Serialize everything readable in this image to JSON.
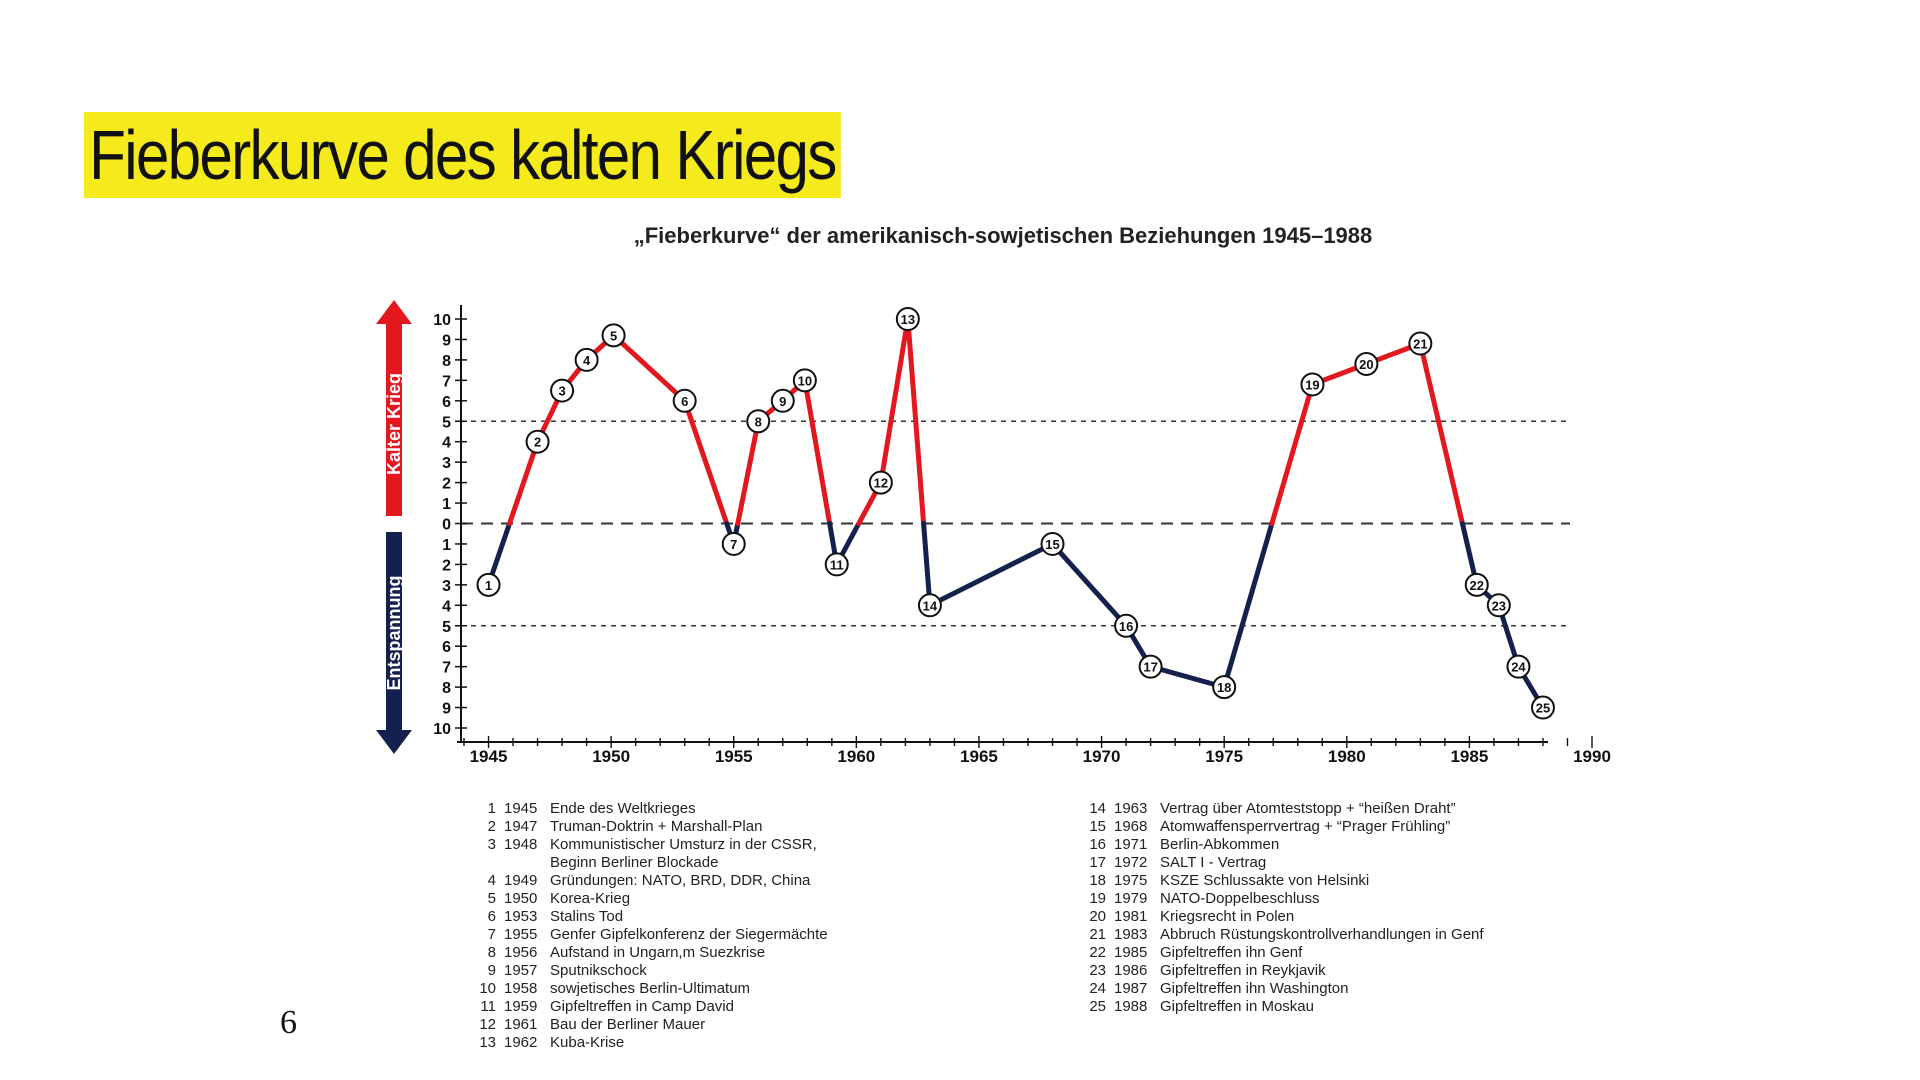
{
  "slide": {
    "title": "Fieberkurve des kalten Kriegs",
    "page_number": "6"
  },
  "colors": {
    "highlight": "#f5eb1c",
    "cold_war_red": "#e3181f",
    "detente_navy": "#14214e"
  },
  "chart_data": {
    "type": "line",
    "title": "„Fieberkurve“ der amerikanisch-sowjetischen Beziehungen 1945–1988",
    "axis_band_labels": {
      "upper": "Kalter Krieg",
      "lower": "Entspannung"
    },
    "x_ticks": [
      1945,
      1950,
      1955,
      1960,
      1965,
      1970,
      1975,
      1980,
      1985,
      1990
    ],
    "y_ticks": [
      "10",
      "9",
      "8",
      "7",
      "6",
      "5",
      "4",
      "3",
      "2",
      "1",
      "0",
      "1",
      "2",
      "3",
      "4",
      "5",
      "6",
      "7",
      "8",
      "9",
      "10"
    ],
    "xlim": [
      1944,
      1990
    ],
    "ylim": [
      -10,
      10
    ],
    "reference_lines": [
      5,
      0,
      -5
    ],
    "points": [
      {
        "n": 1,
        "x": 1945.0,
        "y": -3
      },
      {
        "n": 2,
        "x": 1947.0,
        "y": 4
      },
      {
        "n": 3,
        "x": 1948.0,
        "y": 6.5
      },
      {
        "n": 4,
        "x": 1949.0,
        "y": 8
      },
      {
        "n": 5,
        "x": 1950.1,
        "y": 9.2
      },
      {
        "n": 6,
        "x": 1953.0,
        "y": 6
      },
      {
        "n": 7,
        "x": 1955.0,
        "y": -1
      },
      {
        "n": 8,
        "x": 1956.0,
        "y": 5
      },
      {
        "n": 9,
        "x": 1957.0,
        "y": 6
      },
      {
        "n": 10,
        "x": 1957.9,
        "y": 7
      },
      {
        "n": 11,
        "x": 1959.2,
        "y": -2
      },
      {
        "n": 12,
        "x": 1961.0,
        "y": 2
      },
      {
        "n": 13,
        "x": 1962.1,
        "y": 10
      },
      {
        "n": 14,
        "x": 1963.0,
        "y": -4
      },
      {
        "n": 15,
        "x": 1968.0,
        "y": -1
      },
      {
        "n": 16,
        "x": 1971.0,
        "y": -5
      },
      {
        "n": 17,
        "x": 1972.0,
        "y": -7
      },
      {
        "n": 18,
        "x": 1975.0,
        "y": -8
      },
      {
        "n": 19,
        "x": 1978.6,
        "y": 6.8
      },
      {
        "n": 20,
        "x": 1980.8,
        "y": 7.8
      },
      {
        "n": 21,
        "x": 1983.0,
        "y": 8.8
      },
      {
        "n": 22,
        "x": 1985.3,
        "y": -3
      },
      {
        "n": 23,
        "x": 1986.2,
        "y": -4
      },
      {
        "n": 24,
        "x": 1987.0,
        "y": -7
      },
      {
        "n": 25,
        "x": 1988.0,
        "y": -9
      }
    ],
    "legend": {
      "left": [
        {
          "no": "1",
          "year": "1945",
          "text": "Ende des Weltkrieges"
        },
        {
          "no": "2",
          "year": "1947",
          "text": "Truman-Doktrin + Marshall-Plan"
        },
        {
          "no": "3",
          "year": "1948",
          "text": "Kommunistischer Umsturz in der CSSR,"
        },
        {
          "no": "",
          "year": "",
          "text": "Beginn Berliner Blockade"
        },
        {
          "no": "4",
          "year": "1949",
          "text": "Gründungen: NATO, BRD, DDR, China"
        },
        {
          "no": "5",
          "year": "1950",
          "text": "Korea-Krieg"
        },
        {
          "no": "6",
          "year": "1953",
          "text": "Stalins Tod"
        },
        {
          "no": "7",
          "year": "1955",
          "text": "Genfer Gipfelkonferenz der Siegermächte"
        },
        {
          "no": "8",
          "year": "1956",
          "text": "Aufstand in Ungarn,m Suezkrise"
        },
        {
          "no": "9",
          "year": "1957",
          "text": "Sputnikschock"
        },
        {
          "no": "10",
          "year": "1958",
          "text": "sowjetisches Berlin-Ultimatum"
        },
        {
          "no": "11",
          "year": "1959",
          "text": "Gipfeltreffen in Camp David"
        },
        {
          "no": "12",
          "year": "1961",
          "text": "Bau der Berliner Mauer"
        },
        {
          "no": "13",
          "year": "1962",
          "text": "Kuba-Krise"
        }
      ],
      "right": [
        {
          "no": "14",
          "year": "1963",
          "text": "Vertrag über Atomteststopp + “heißen Draht”"
        },
        {
          "no": "15",
          "year": "1968",
          "text": "Atomwaffensperrvertrag + “Prager Frühling”"
        },
        {
          "no": "16",
          "year": "1971",
          "text": "Berlin-Abkommen"
        },
        {
          "no": "17",
          "year": "1972",
          "text": "SALT I - Vertrag"
        },
        {
          "no": "18",
          "year": "1975",
          "text": "KSZE Schlussakte von Helsinki"
        },
        {
          "no": "19",
          "year": "1979",
          "text": "NATO-Doppelbeschluss"
        },
        {
          "no": "20",
          "year": "1981",
          "text": "Kriegsrecht in Polen"
        },
        {
          "no": "21",
          "year": "1983",
          "text": "Abbruch Rüstungskontrollverhandlungen in Genf"
        },
        {
          "no": "22",
          "year": "1985",
          "text": "Gipfeltreffen ihn Genf"
        },
        {
          "no": "23",
          "year": "1986",
          "text": "Gipfeltreffen in Reykjavik"
        },
        {
          "no": "24",
          "year": "1987",
          "text": "Gipfeltreffen ihn Washington"
        },
        {
          "no": "25",
          "year": "1988",
          "text": "Gipfeltreffen in Moskau"
        }
      ]
    }
  }
}
